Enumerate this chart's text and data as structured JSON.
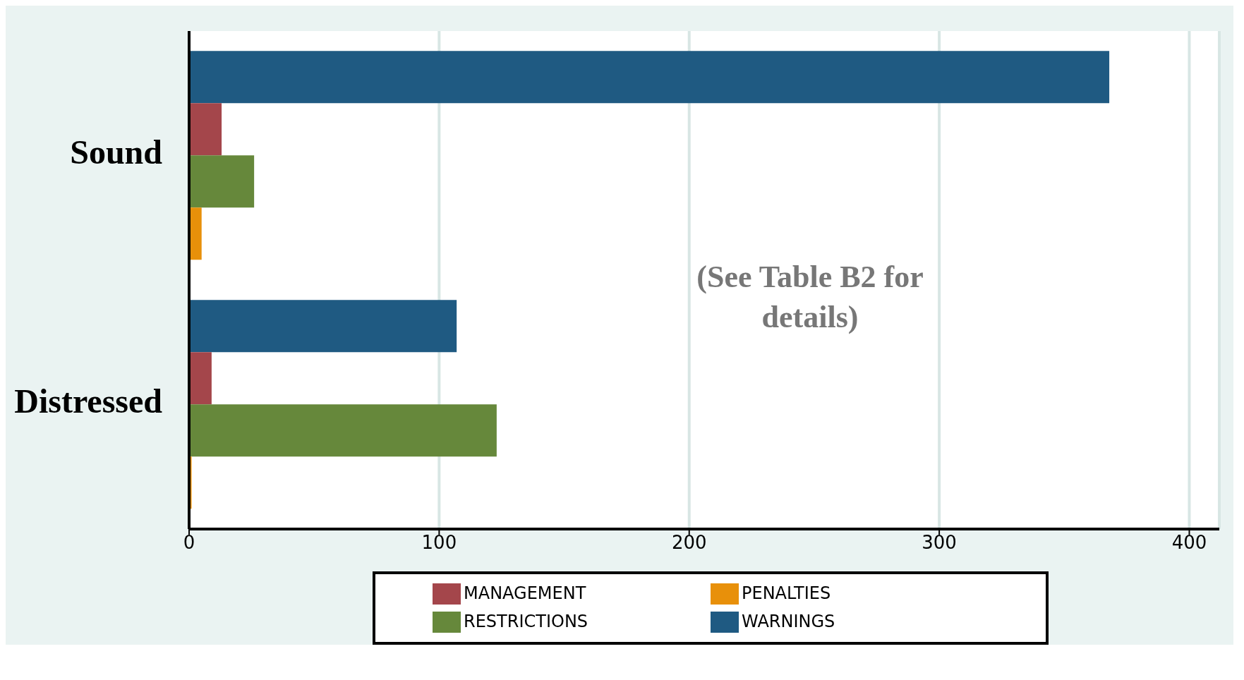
{
  "chart_data": {
    "type": "bar",
    "orientation": "horizontal",
    "categories": [
      "Sound",
      "Distressed"
    ],
    "series": [
      {
        "name": "WARNINGS",
        "color": "#1f5a82",
        "values": [
          368,
          107
        ]
      },
      {
        "name": "MANAGEMENT",
        "color": "#a4464b",
        "values": [
          13,
          9
        ]
      },
      {
        "name": "RESTRICTIONS",
        "color": "#66883b",
        "values": [
          26,
          123
        ]
      },
      {
        "name": "PENALTIES",
        "color": "#e8900a",
        "values": [
          5,
          1
        ]
      }
    ],
    "xlim": [
      0,
      412
    ],
    "xticks": [
      0,
      100,
      200,
      300,
      400
    ],
    "grid": "x",
    "legend": "bottom",
    "annotations": [
      "(See Table B2 for details)"
    ]
  }
}
